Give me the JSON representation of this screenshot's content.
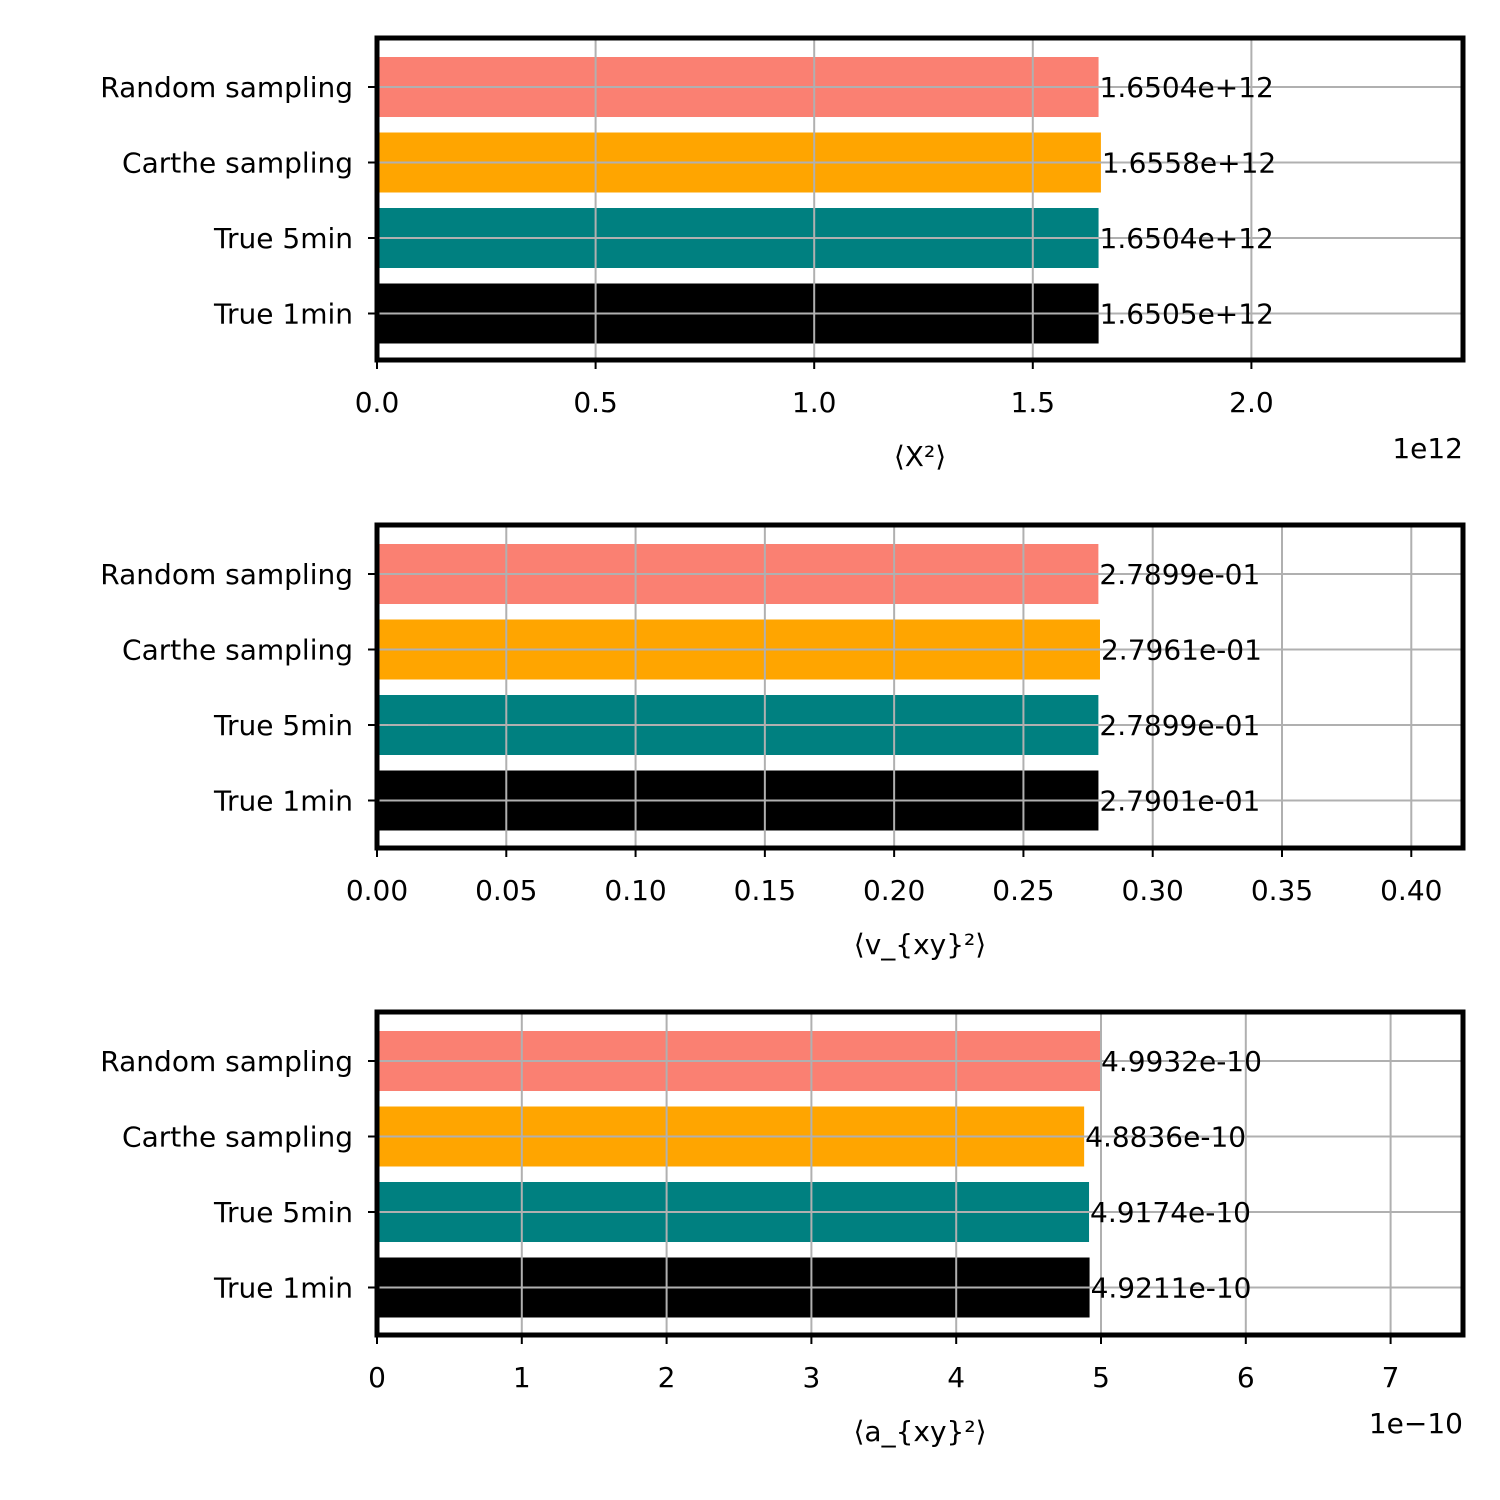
{
  "chart_data": [
    {
      "type": "bar",
      "orientation": "horizontal",
      "categories": [
        "Random sampling",
        "Carthe sampling",
        "True 5min",
        "True 1min"
      ],
      "values": [
        1650400000000.0,
        1655800000000.0,
        1650400000000.0,
        1650500000000.0
      ],
      "value_labels": [
        "1.6504e+12",
        "1.6558e+12",
        "1.6504e+12",
        "1.6505e+12"
      ],
      "xlabel": "⟨X²⟩",
      "xlim": [
        0,
        2484000000000.0
      ],
      "xticks": [
        0,
        500000000000.0,
        1000000000000.0,
        1500000000000.0,
        2000000000000.0
      ],
      "xtick_labels": [
        "0.0",
        "0.5",
        "1.0",
        "1.5",
        "2.0"
      ],
      "offset_text": "1e12",
      "grid": true
    },
    {
      "type": "bar",
      "orientation": "horizontal",
      "categories": [
        "Random sampling",
        "Carthe sampling",
        "True 5min",
        "True 1min"
      ],
      "values": [
        0.27899,
        0.27961,
        0.27899,
        0.27901
      ],
      "value_labels": [
        "2.7899e-01",
        "2.7961e-01",
        "2.7899e-01",
        "2.7901e-01"
      ],
      "xlabel": "⟨v_{xy}²⟩",
      "xlim": [
        0,
        0.42
      ],
      "xticks": [
        0,
        0.05,
        0.1,
        0.15,
        0.2,
        0.25,
        0.3,
        0.35,
        0.4
      ],
      "xtick_labels": [
        "0.00",
        "0.05",
        "0.10",
        "0.15",
        "0.20",
        "0.25",
        "0.30",
        "0.35",
        "0.40"
      ],
      "offset_text": "",
      "grid": true
    },
    {
      "type": "bar",
      "orientation": "horizontal",
      "categories": [
        "Random sampling",
        "Carthe sampling",
        "True 5min",
        "True 1min"
      ],
      "values": [
        4.9932e-10,
        4.8836e-10,
        4.9174e-10,
        4.9211e-10
      ],
      "value_labels": [
        "4.9932e-10",
        "4.8836e-10",
        "4.9174e-10",
        "4.9211e-10"
      ],
      "xlabel": "⟨a_{xy}²⟩",
      "xlim": [
        0,
        7.5e-10
      ],
      "xticks": [
        0,
        1e-10,
        2e-10,
        3e-10,
        4e-10,
        5e-10,
        6e-10,
        7e-10
      ],
      "xtick_labels": [
        "0",
        "1",
        "2",
        "3",
        "4",
        "5",
        "6",
        "7"
      ],
      "offset_text": "1e−10",
      "grid": true
    }
  ],
  "bar_colors": [
    "#fa8072",
    "#ffa500",
    "#008080",
    "#000000"
  ]
}
